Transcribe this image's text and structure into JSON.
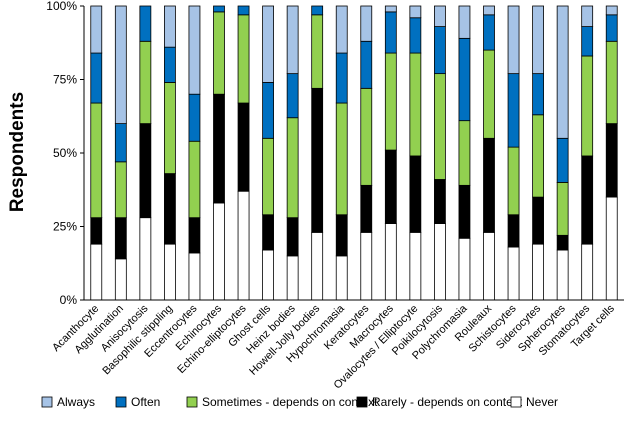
{
  "chart_data": {
    "type": "bar",
    "stacked": true,
    "ylabel": "Respondents",
    "xlabel": "",
    "ylim": [
      0,
      100
    ],
    "yticks": [
      "0%",
      "25%",
      "50%",
      "75%",
      "100%"
    ],
    "categories": [
      "Acanthocyte",
      "Agglutination",
      "Anisocytosis",
      "Basophilic stippling",
      "Eccentrocytes",
      "Echinocytes",
      "Echino-elliptocytes",
      "Ghost cells",
      "Heinz bodies",
      "Howell-Jolly bodies",
      "Hypochromasia",
      "Keratocytes",
      "Macrocytes",
      "Ovalocytes / Elliptocyte",
      "Poikilocytosis",
      "Polychromasia",
      "Rouleaux",
      "Schistocytes",
      "Siderocytes",
      "Spherocytes",
      "Stomatocytes",
      "Target cells"
    ],
    "series": [
      {
        "name": "Never",
        "color": "#ffffff",
        "values": [
          19,
          14,
          28,
          19,
          16,
          33,
          37,
          17,
          15,
          23,
          15,
          23,
          26,
          23,
          26,
          21,
          23,
          18,
          19,
          17,
          19,
          35
        ]
      },
      {
        "name": "Rarely - depends on context",
        "color": "#000000",
        "values": [
          9,
          14,
          32,
          24,
          12,
          37,
          30,
          12,
          13,
          49,
          14,
          16,
          25,
          26,
          15,
          18,
          32,
          11,
          16,
          5,
          30,
          25
        ]
      },
      {
        "name": "Sometimes - depends on context",
        "color": "#92d050",
        "values": [
          39,
          19,
          28,
          31,
          26,
          28,
          30,
          26,
          34,
          25,
          38,
          33,
          33,
          35,
          36,
          22,
          30,
          23,
          28,
          18,
          34,
          28
        ]
      },
      {
        "name": "Often",
        "color": "#0070c0",
        "values": [
          17,
          13,
          12,
          12,
          16,
          2,
          3,
          19,
          15,
          3,
          17,
          16,
          14,
          12,
          16,
          28,
          12,
          25,
          14,
          15,
          10,
          9
        ]
      },
      {
        "name": "Always",
        "color": "#a6c3e6",
        "values": [
          16,
          40,
          0,
          14,
          30,
          0,
          0,
          26,
          23,
          0,
          16,
          12,
          2,
          4,
          7,
          11,
          3,
          23,
          23,
          45,
          7,
          3
        ]
      }
    ],
    "legend": {
      "position": "bottom",
      "order": [
        "Always",
        "Often",
        "Sometimes - depends on context",
        "Rarely - depends on context",
        "Never"
      ]
    }
  }
}
